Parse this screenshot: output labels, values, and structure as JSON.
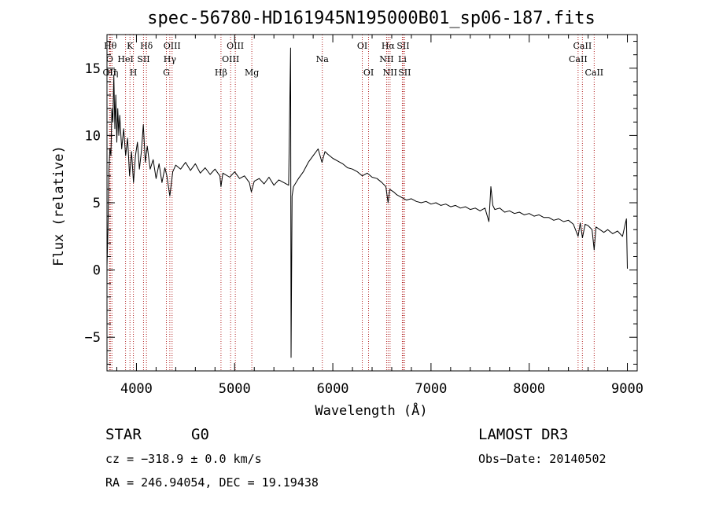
{
  "chart_data": {
    "type": "line",
    "title": "spec-56780-HD161945N195000B01_sp06-187.fits",
    "xlabel": "Wavelength (Å)",
    "ylabel": "Flux (relative)",
    "xlim": [
      3700,
      9100
    ],
    "ylim": [
      -7.5,
      17.5
    ],
    "x_ticks": [
      4000,
      5000,
      6000,
      7000,
      8000,
      9000
    ],
    "y_ticks": [
      -5,
      0,
      5,
      10,
      15
    ],
    "grid": false,
    "series": [
      {
        "points": [
          [
            3700,
            0.3
          ],
          [
            3710,
            3.0
          ],
          [
            3720,
            7.5
          ],
          [
            3730,
            9.0
          ],
          [
            3740,
            8.5
          ],
          [
            3750,
            12.0
          ],
          [
            3760,
            11.0
          ],
          [
            3770,
            14.5
          ],
          [
            3780,
            10.5
          ],
          [
            3790,
            13.0
          ],
          [
            3800,
            9.5
          ],
          [
            3810,
            12.0
          ],
          [
            3820,
            10.0
          ],
          [
            3830,
            11.5
          ],
          [
            3850,
            9.0
          ],
          [
            3870,
            10.5
          ],
          [
            3890,
            8.5
          ],
          [
            3910,
            9.8
          ],
          [
            3930,
            7.0
          ],
          [
            3950,
            8.8
          ],
          [
            3970,
            6.5
          ],
          [
            3990,
            8.5
          ],
          [
            4010,
            9.5
          ],
          [
            4030,
            7.5
          ],
          [
            4050,
            8.8
          ],
          [
            4070,
            10.8
          ],
          [
            4090,
            8.0
          ],
          [
            4110,
            9.2
          ],
          [
            4140,
            7.5
          ],
          [
            4170,
            8.2
          ],
          [
            4200,
            6.8
          ],
          [
            4230,
            7.9
          ],
          [
            4260,
            6.5
          ],
          [
            4290,
            7.6
          ],
          [
            4310,
            7.0
          ],
          [
            4340,
            5.5
          ],
          [
            4370,
            7.3
          ],
          [
            4400,
            7.8
          ],
          [
            4450,
            7.5
          ],
          [
            4500,
            8.0
          ],
          [
            4550,
            7.4
          ],
          [
            4600,
            7.9
          ],
          [
            4650,
            7.2
          ],
          [
            4700,
            7.6
          ],
          [
            4750,
            7.1
          ],
          [
            4800,
            7.5
          ],
          [
            4850,
            7.0
          ],
          [
            4861,
            6.2
          ],
          [
            4880,
            7.2
          ],
          [
            4950,
            6.9
          ],
          [
            5000,
            7.3
          ],
          [
            5050,
            6.8
          ],
          [
            5100,
            7.0
          ],
          [
            5150,
            6.5
          ],
          [
            5170,
            5.8
          ],
          [
            5200,
            6.6
          ],
          [
            5250,
            6.8
          ],
          [
            5300,
            6.4
          ],
          [
            5350,
            6.9
          ],
          [
            5400,
            6.3
          ],
          [
            5450,
            6.7
          ],
          [
            5500,
            6.5
          ],
          [
            5550,
            6.3
          ],
          [
            5570,
            16.5
          ],
          [
            5575,
            -6.5
          ],
          [
            5585,
            5.5
          ],
          [
            5600,
            6.2
          ],
          [
            5650,
            6.8
          ],
          [
            5700,
            7.3
          ],
          [
            5750,
            8.0
          ],
          [
            5800,
            8.5
          ],
          [
            5850,
            9.0
          ],
          [
            5890,
            8.0
          ],
          [
            5920,
            8.8
          ],
          [
            5950,
            8.6
          ],
          [
            6000,
            8.3
          ],
          [
            6050,
            8.1
          ],
          [
            6100,
            7.9
          ],
          [
            6150,
            7.6
          ],
          [
            6200,
            7.5
          ],
          [
            6250,
            7.3
          ],
          [
            6300,
            7.0
          ],
          [
            6350,
            7.2
          ],
          [
            6400,
            6.9
          ],
          [
            6450,
            6.8
          ],
          [
            6500,
            6.5
          ],
          [
            6540,
            6.2
          ],
          [
            6563,
            5.0
          ],
          [
            6580,
            6.0
          ],
          [
            6620,
            5.8
          ],
          [
            6650,
            5.6
          ],
          [
            6700,
            5.4
          ],
          [
            6750,
            5.2
          ],
          [
            6800,
            5.3
          ],
          [
            6850,
            5.1
          ],
          [
            6900,
            5.0
          ],
          [
            6950,
            5.1
          ],
          [
            7000,
            4.9
          ],
          [
            7050,
            5.0
          ],
          [
            7100,
            4.8
          ],
          [
            7150,
            4.9
          ],
          [
            7200,
            4.7
          ],
          [
            7250,
            4.8
          ],
          [
            7300,
            4.6
          ],
          [
            7350,
            4.7
          ],
          [
            7400,
            4.5
          ],
          [
            7450,
            4.6
          ],
          [
            7500,
            4.4
          ],
          [
            7550,
            4.6
          ],
          [
            7590,
            3.6
          ],
          [
            7610,
            6.2
          ],
          [
            7630,
            4.8
          ],
          [
            7650,
            4.5
          ],
          [
            7700,
            4.6
          ],
          [
            7750,
            4.3
          ],
          [
            7800,
            4.4
          ],
          [
            7850,
            4.2
          ],
          [
            7900,
            4.3
          ],
          [
            7950,
            4.1
          ],
          [
            8000,
            4.2
          ],
          [
            8050,
            4.0
          ],
          [
            8100,
            4.1
          ],
          [
            8150,
            3.9
          ],
          [
            8200,
            3.9
          ],
          [
            8250,
            3.7
          ],
          [
            8300,
            3.8
          ],
          [
            8350,
            3.6
          ],
          [
            8400,
            3.7
          ],
          [
            8450,
            3.4
          ],
          [
            8498,
            2.5
          ],
          [
            8520,
            3.5
          ],
          [
            8542,
            2.4
          ],
          [
            8570,
            3.4
          ],
          [
            8600,
            3.3
          ],
          [
            8640,
            3.0
          ],
          [
            8662,
            1.5
          ],
          [
            8680,
            3.2
          ],
          [
            8720,
            3.0
          ],
          [
            8760,
            2.8
          ],
          [
            8800,
            3.0
          ],
          [
            8850,
            2.7
          ],
          [
            8900,
            2.9
          ],
          [
            8950,
            2.5
          ],
          [
            8990,
            3.8
          ],
          [
            9000,
            0.1
          ]
        ]
      }
    ],
    "line_markers": [
      {
        "label": "Hθ",
        "x": 3734,
        "row": 0
      },
      {
        "label": "Hη",
        "x": 3750,
        "row": 2
      },
      {
        "label": "K",
        "x": 3934,
        "row": 0
      },
      {
        "label": "Hδ",
        "x": 4102,
        "row": 0
      },
      {
        "label": "OII",
        "x": 3727,
        "row": 2
      },
      {
        "label": "O",
        "x": 3727,
        "row": 1
      },
      {
        "label": "HeI",
        "x": 3889,
        "row": 1
      },
      {
        "label": "SII",
        "x": 4072,
        "row": 1
      },
      {
        "label": "H",
        "x": 3969,
        "row": 2
      },
      {
        "label": "OIII",
        "x": 4363,
        "row": 0
      },
      {
        "label": "Hγ",
        "x": 4340,
        "row": 1
      },
      {
        "label": "G",
        "x": 4305,
        "row": 2
      },
      {
        "label": "Hβ",
        "x": 4861,
        "row": 2
      },
      {
        "label": "OIII",
        "x": 5007,
        "row": 0
      },
      {
        "label": "OIII",
        "x": 4959,
        "row": 1
      },
      {
        "label": "Mg",
        "x": 5175,
        "row": 2
      },
      {
        "label": "Na",
        "x": 5893,
        "row": 1
      },
      {
        "label": "OI",
        "x": 6300,
        "row": 0
      },
      {
        "label": "OI",
        "x": 6364,
        "row": 2
      },
      {
        "label": "Hα",
        "x": 6563,
        "row": 0
      },
      {
        "label": "SII",
        "x": 6716,
        "row": 0
      },
      {
        "label": "NII",
        "x": 6548,
        "row": 1
      },
      {
        "label": "Li",
        "x": 6708,
        "row": 1
      },
      {
        "label": "NII",
        "x": 6583,
        "row": 2
      },
      {
        "label": "SII",
        "x": 6731,
        "row": 2
      },
      {
        "label": "CaII",
        "x": 8542,
        "row": 0
      },
      {
        "label": "CaII",
        "x": 8498,
        "row": 1
      },
      {
        "label": "CaII",
        "x": 8662,
        "row": 2
      }
    ]
  },
  "info": {
    "object_class": "STAR",
    "subclass": "G0",
    "survey": "LAMOST DR3",
    "cz": "cz = −318.9 ± 0.0 km/s",
    "obs_date": "Obs−Date: 20140502",
    "coords": "RA = 246.94054, DEC =  19.19438"
  },
  "colors": {
    "line": "#000000",
    "marker": "#b22222",
    "axis": "#000000"
  }
}
